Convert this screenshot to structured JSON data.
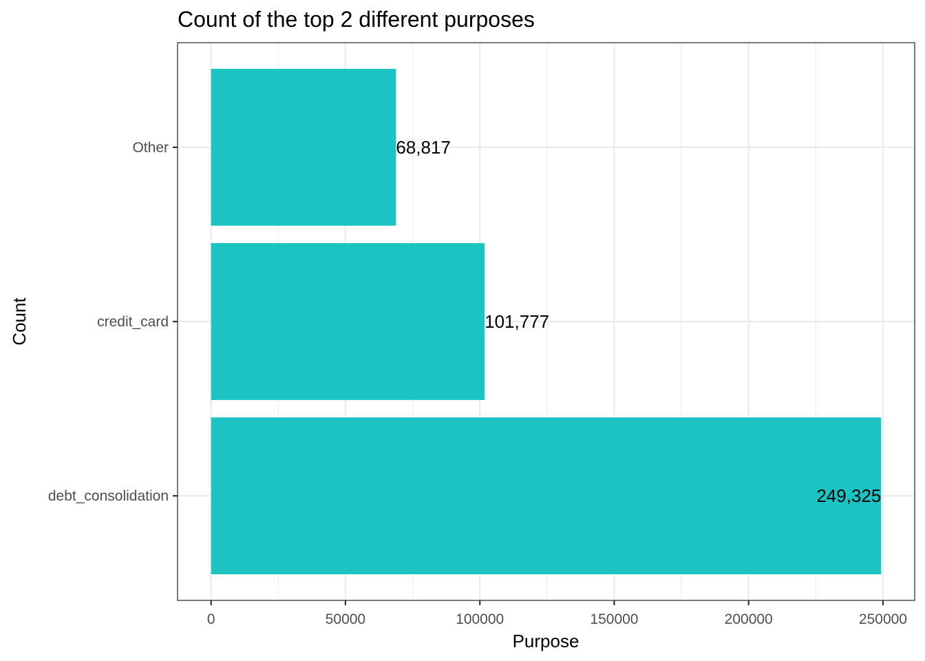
{
  "chart_data": {
    "type": "bar",
    "orientation": "horizontal",
    "title": "Count of the top 2 different purposes",
    "xlabel": "Purpose",
    "ylabel": "Count",
    "categories": [
      "debt_consolidation",
      "credit_card",
      "Other"
    ],
    "values": [
      249325,
      101777,
      68817
    ],
    "value_labels": [
      "249,325",
      "101,777",
      "68,817"
    ],
    "x_ticks": [
      0,
      50000,
      100000,
      150000,
      200000,
      250000
    ],
    "x_tick_labels": [
      "0",
      "50000",
      "100000",
      "150000",
      "200000",
      "250000"
    ],
    "xlim": [
      -12466,
      261791
    ],
    "grid": true,
    "legend": "none",
    "bar_color": "#1BC4C3"
  }
}
